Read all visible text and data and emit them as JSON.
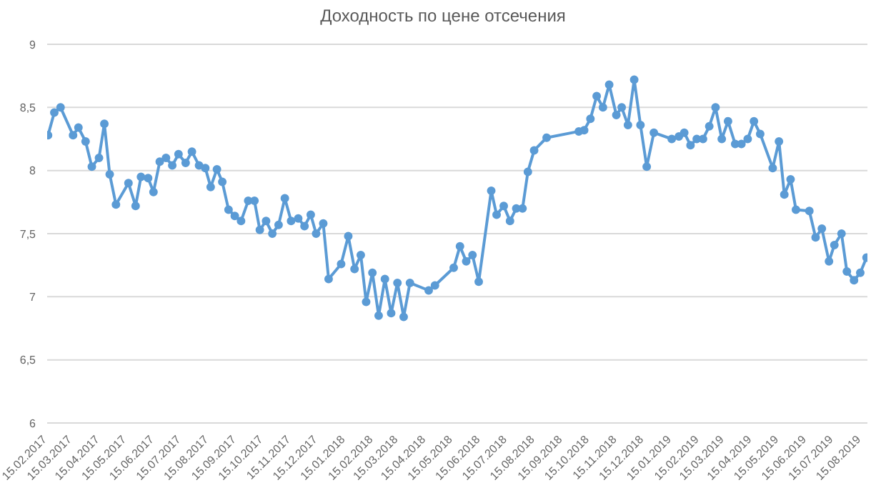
{
  "chart_data": {
    "type": "line",
    "title": "Доходность по цене отсечения",
    "x": [
      "2017-02-16",
      "2017-02-23",
      "2017-03-02",
      "2017-03-16",
      "2017-03-22",
      "2017-03-30",
      "2017-04-06",
      "2017-04-14",
      "2017-04-20",
      "2017-04-26",
      "2017-05-03",
      "2017-05-17",
      "2017-05-25",
      "2017-05-31",
      "2017-06-08",
      "2017-06-14",
      "2017-06-21",
      "2017-06-28",
      "2017-07-05",
      "2017-07-12",
      "2017-07-20",
      "2017-07-27",
      "2017-08-04",
      "2017-08-11",
      "2017-08-17",
      "2017-08-24",
      "2017-08-30",
      "2017-09-06",
      "2017-09-13",
      "2017-09-20",
      "2017-09-28",
      "2017-10-05",
      "2017-10-11",
      "2017-10-18",
      "2017-10-25",
      "2017-11-01",
      "2017-11-08",
      "2017-11-15",
      "2017-11-23",
      "2017-11-30",
      "2017-12-07",
      "2017-12-13",
      "2017-12-21",
      "2017-12-27",
      "2018-01-10",
      "2018-01-18",
      "2018-01-25",
      "2018-02-01",
      "2018-02-07",
      "2018-02-14",
      "2018-02-21",
      "2018-02-28",
      "2018-03-07",
      "2018-03-14",
      "2018-03-21",
      "2018-03-28",
      "2018-04-18",
      "2018-04-25",
      "2018-05-16",
      "2018-05-23",
      "2018-05-30",
      "2018-06-06",
      "2018-06-13",
      "2018-06-27",
      "2018-07-03",
      "2018-07-11",
      "2018-07-18",
      "2018-07-25",
      "2018-08-01",
      "2018-08-07",
      "2018-08-14",
      "2018-08-28",
      "2018-10-03",
      "2018-10-09",
      "2018-10-16",
      "2018-10-23",
      "2018-10-30",
      "2018-11-06",
      "2018-11-14",
      "2018-11-20",
      "2018-11-27",
      "2018-12-04",
      "2018-12-11",
      "2018-12-18",
      "2018-12-26",
      "2019-01-15",
      "2019-01-23",
      "2019-01-29",
      "2019-02-05",
      "2019-02-12",
      "2019-02-19",
      "2019-02-26",
      "2019-03-05",
      "2019-03-12",
      "2019-03-19",
      "2019-03-27",
      "2019-04-03",
      "2019-04-10",
      "2019-04-17",
      "2019-04-24",
      "2019-05-08",
      "2019-05-15",
      "2019-05-21",
      "2019-05-28",
      "2019-06-03",
      "2019-06-18",
      "2019-06-25",
      "2019-07-02",
      "2019-07-10",
      "2019-07-16",
      "2019-07-24",
      "2019-07-30",
      "2019-08-07",
      "2019-08-14",
      "2019-08-21"
    ],
    "series": [
      {
        "color": "#5b9bd5",
        "values": [
          8.28,
          8.46,
          8.5,
          8.28,
          8.34,
          8.23,
          8.03,
          8.1,
          8.37,
          7.97,
          7.73,
          7.9,
          7.72,
          7.95,
          7.94,
          7.83,
          8.07,
          8.1,
          8.04,
          8.13,
          8.06,
          8.15,
          8.04,
          8.02,
          7.87,
          8.01,
          7.91,
          7.69,
          7.64,
          7.6,
          7.76,
          7.76,
          7.53,
          7.6,
          7.5,
          7.57,
          7.78,
          7.6,
          7.62,
          7.56,
          7.65,
          7.5,
          7.58,
          7.14,
          7.26,
          7.48,
          7.22,
          7.33,
          6.96,
          7.19,
          6.85,
          7.14,
          6.87,
          7.11,
          6.84,
          7.11,
          7.05,
          7.09,
          7.23,
          7.4,
          7.28,
          7.33,
          7.12,
          7.84,
          7.65,
          7.72,
          7.6,
          7.7,
          7.7,
          7.99,
          8.16,
          8.26,
          8.31,
          8.32,
          8.41,
          8.59,
          8.5,
          8.68,
          8.44,
          8.5,
          8.36,
          8.72,
          8.36,
          8.03,
          8.3,
          8.25,
          8.27,
          8.3,
          8.2,
          8.25,
          8.25,
          8.35,
          8.5,
          8.25,
          8.39,
          8.21,
          8.21,
          8.25,
          8.39,
          8.29,
          8.02,
          8.23,
          7.81,
          7.93,
          7.69,
          7.68,
          7.47,
          7.54,
          7.28,
          7.41,
          7.5,
          7.2,
          7.13,
          7.19,
          7.31
        ]
      }
    ],
    "xlim": [
      "2017-02-15",
      "2019-08-22"
    ],
    "xticks": [
      {
        "value": "2017-02-15",
        "label": "15.02.2017"
      },
      {
        "value": "2017-03-15",
        "label": "15.03.2017"
      },
      {
        "value": "2017-04-15",
        "label": "15.04.2017"
      },
      {
        "value": "2017-05-15",
        "label": "15.05.2017"
      },
      {
        "value": "2017-06-15",
        "label": "15.06.2017"
      },
      {
        "value": "2017-07-15",
        "label": "15.07.2017"
      },
      {
        "value": "2017-08-15",
        "label": "15.08.2017"
      },
      {
        "value": "2017-09-15",
        "label": "15.09.2017"
      },
      {
        "value": "2017-10-15",
        "label": "15.10.2017"
      },
      {
        "value": "2017-11-15",
        "label": "15.11.2017"
      },
      {
        "value": "2017-12-15",
        "label": "15.12.2017"
      },
      {
        "value": "2018-01-15",
        "label": "15.01.2018"
      },
      {
        "value": "2018-02-15",
        "label": "15.02.2018"
      },
      {
        "value": "2018-03-15",
        "label": "15.03.2018"
      },
      {
        "value": "2018-04-15",
        "label": "15.04.2018"
      },
      {
        "value": "2018-05-15",
        "label": "15.05.2018"
      },
      {
        "value": "2018-06-15",
        "label": "15.06.2018"
      },
      {
        "value": "2018-07-15",
        "label": "15.07.2018"
      },
      {
        "value": "2018-08-15",
        "label": "15.08.2018"
      },
      {
        "value": "2018-09-15",
        "label": "15.09.2018"
      },
      {
        "value": "2018-10-15",
        "label": "15.10.2018"
      },
      {
        "value": "2018-11-15",
        "label": "15.11.2018"
      },
      {
        "value": "2018-12-15",
        "label": "15.12.2018"
      },
      {
        "value": "2019-01-15",
        "label": "15.01.2019"
      },
      {
        "value": "2019-02-15",
        "label": "15.02.2019"
      },
      {
        "value": "2019-03-15",
        "label": "15.03.2019"
      },
      {
        "value": "2019-04-15",
        "label": "15.04.2019"
      },
      {
        "value": "2019-05-15",
        "label": "15.05.2019"
      },
      {
        "value": "2019-06-15",
        "label": "15.06.2019"
      },
      {
        "value": "2019-07-15",
        "label": "15.07.2019"
      },
      {
        "value": "2019-08-15",
        "label": "15.08.2019"
      }
    ],
    "ylim": [
      6,
      9
    ],
    "yticks": [
      6,
      {
        "value": 6.5,
        "label": "6,5"
      },
      7,
      {
        "value": 7.5,
        "label": "7,5"
      },
      8,
      {
        "value": 8.5,
        "label": "8,5"
      },
      9
    ],
    "grid": "y",
    "marker": "circle",
    "line_style": "solid",
    "legend": false
  }
}
